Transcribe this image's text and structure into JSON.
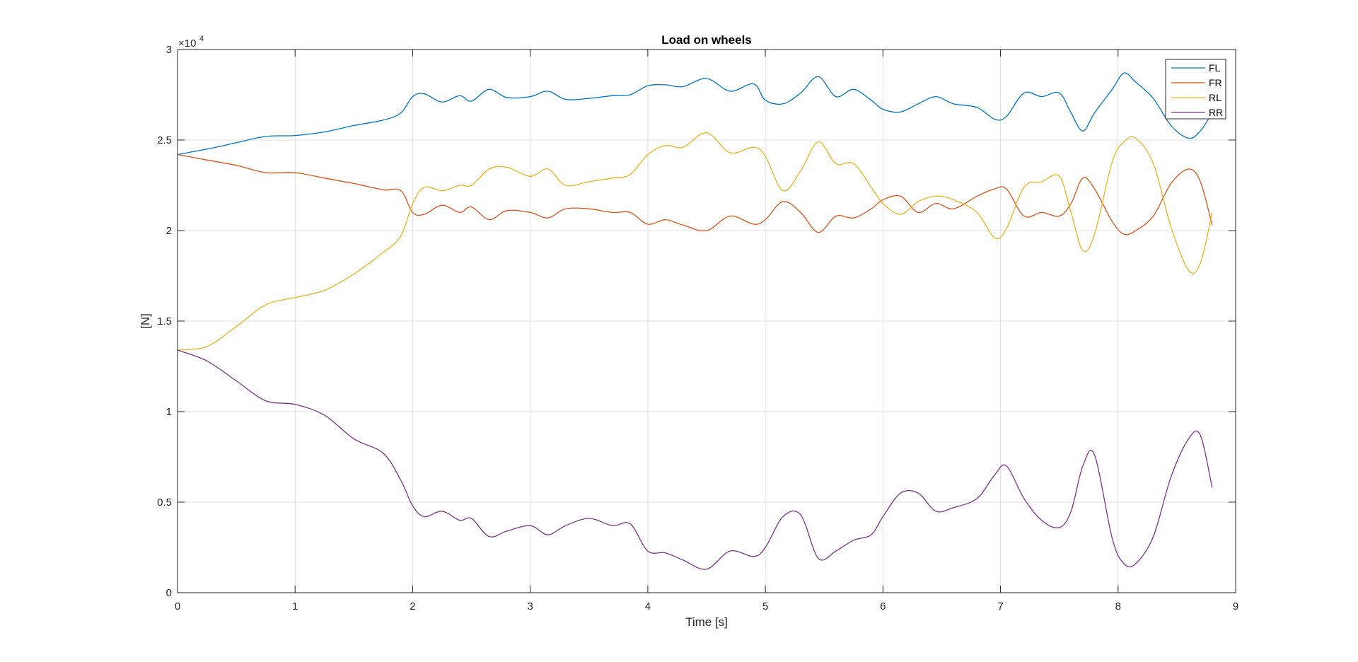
{
  "chart_data": {
    "type": "line",
    "title": "Load on wheels",
    "xlabel": "Time [s]",
    "ylabel": "[N]",
    "exponent_label": "×10",
    "exponent_power": "4",
    "xlim": [
      0,
      9
    ],
    "ylim": [
      0,
      30000
    ],
    "xticks": [
      0,
      1,
      2,
      3,
      4,
      5,
      6,
      7,
      8,
      9
    ],
    "xtick_labels": [
      "0",
      "1",
      "2",
      "3",
      "4",
      "5",
      "6",
      "7",
      "8",
      "9"
    ],
    "yticks": [
      0,
      5000,
      10000,
      15000,
      20000,
      25000,
      30000
    ],
    "ytick_labels": [
      "0",
      "0.5",
      "1",
      "1.5",
      "2",
      "2.5",
      "3"
    ],
    "grid": true,
    "legend_position": "top-right",
    "x": [
      0,
      0.25,
      0.5,
      0.75,
      1.0,
      1.25,
      1.5,
      1.75,
      1.9,
      2.0,
      2.1,
      2.25,
      2.4,
      2.5,
      2.65,
      2.8,
      3.0,
      3.15,
      3.3,
      3.5,
      3.7,
      3.85,
      4.0,
      4.15,
      4.3,
      4.5,
      4.7,
      4.9,
      5.0,
      5.15,
      5.3,
      5.45,
      5.6,
      5.75,
      5.9,
      6.0,
      6.15,
      6.3,
      6.45,
      6.6,
      6.8,
      6.95,
      7.05,
      7.2,
      7.35,
      7.5,
      7.6,
      7.7,
      7.8,
      7.95,
      8.05,
      8.15,
      8.3,
      8.45,
      8.6,
      8.7,
      8.8
    ],
    "series": [
      {
        "name": "FL",
        "color": "#0072BD",
        "values": [
          24200,
          24500,
          24850,
          25200,
          25250,
          25450,
          25800,
          26100,
          26500,
          27400,
          27550,
          27100,
          27450,
          27150,
          27800,
          27350,
          27400,
          27700,
          27250,
          27300,
          27450,
          27500,
          28000,
          28050,
          27950,
          28400,
          27700,
          28100,
          27200,
          27000,
          27600,
          28500,
          27400,
          27800,
          27200,
          26700,
          26550,
          27000,
          27400,
          27000,
          26800,
          26150,
          26300,
          27600,
          27400,
          27600,
          26500,
          25500,
          26500,
          27800,
          28700,
          28200,
          27300,
          25800,
          25100,
          25500,
          26500
        ]
      },
      {
        "name": "FR",
        "color": "#D95319",
        "values": [
          24200,
          23900,
          23600,
          23200,
          23200,
          22900,
          22600,
          22250,
          22200,
          21000,
          20900,
          21400,
          21000,
          21300,
          20600,
          21100,
          21000,
          20700,
          21200,
          21200,
          21000,
          21000,
          20350,
          20600,
          20300,
          20000,
          20800,
          20350,
          20600,
          21600,
          21000,
          19900,
          20800,
          20700,
          21200,
          21700,
          21900,
          21000,
          21500,
          21200,
          21900,
          22300,
          22300,
          20800,
          21000,
          20800,
          21500,
          22900,
          22300,
          20500,
          19800,
          20000,
          20800,
          22600,
          23400,
          22700,
          20300
        ]
      },
      {
        "name": "RL",
        "color": "#EDB120",
        "values": [
          13400,
          13600,
          14700,
          15900,
          16300,
          16700,
          17600,
          18800,
          19700,
          21500,
          22400,
          22200,
          22500,
          22500,
          23400,
          23500,
          23000,
          23400,
          22500,
          22700,
          22900,
          23100,
          24200,
          24700,
          24600,
          25400,
          24300,
          24600,
          24100,
          22200,
          23300,
          24900,
          23700,
          23700,
          22400,
          21500,
          20900,
          21600,
          21900,
          21700,
          21000,
          19600,
          20100,
          22400,
          22700,
          23000,
          21000,
          18900,
          19800,
          23800,
          24900,
          25100,
          23700,
          20200,
          17800,
          18200,
          21000
        ]
      },
      {
        "name": "RR",
        "color": "#7E2F8E",
        "values": [
          13400,
          12800,
          11700,
          10600,
          10400,
          9800,
          8500,
          7700,
          6200,
          4800,
          4200,
          4500,
          4000,
          4100,
          3100,
          3400,
          3700,
          3200,
          3700,
          4100,
          3700,
          3800,
          2300,
          2200,
          1800,
          1300,
          2300,
          2000,
          2500,
          4200,
          4300,
          1900,
          2300,
          2900,
          3200,
          4200,
          5500,
          5500,
          4500,
          4700,
          5200,
          6500,
          7000,
          5200,
          4000,
          3600,
          4500,
          7000,
          7600,
          3000,
          1600,
          1600,
          3100,
          6400,
          8500,
          8700,
          5800
        ]
      }
    ]
  }
}
